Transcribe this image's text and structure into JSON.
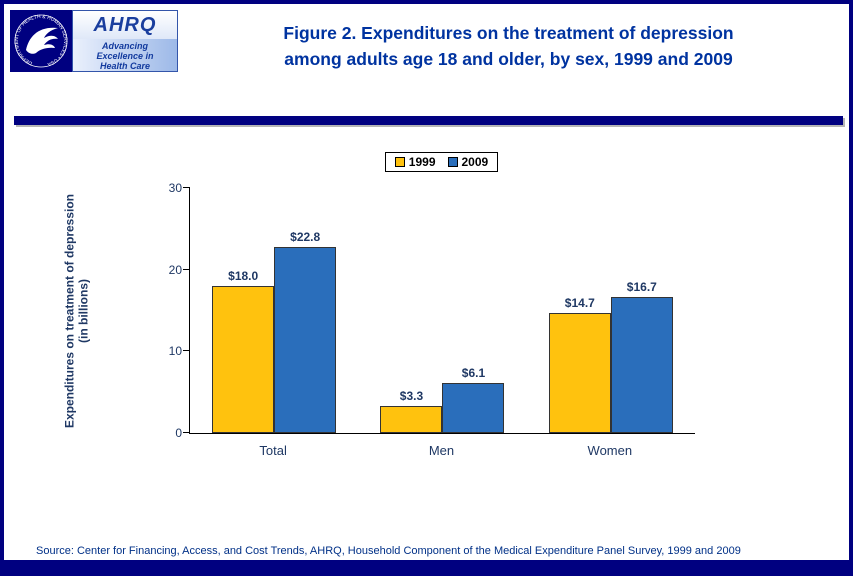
{
  "page": {
    "title_line1": "Figure 2. Expenditures on the treatment of depression",
    "title_line2": "among adults age 18 and older, by sex, 1999 and 2009",
    "source": "Source: Center for Financing, Access, and Cost Trends, AHRQ, Household Component of the Medical Expenditure Panel Survey, 1999 and 2009"
  },
  "logos": {
    "hhs_circle_text": "DEPARTMENT OF HEALTH & HUMAN SERVICES • USA",
    "ahrq_name": "AHRQ",
    "ahrq_tagline_line1": "Advancing",
    "ahrq_tagline_line2": "Excellence in",
    "ahrq_tagline_line3": "Health Care"
  },
  "colors": {
    "border_navy": "#000080",
    "title_blue": "#0033A0",
    "bar_1999": "#FFC20E",
    "bar_2009": "#2A6EBB"
  },
  "chart_data": {
    "type": "bar",
    "title": "",
    "categories": [
      "Total",
      "Men",
      "Women"
    ],
    "series": [
      {
        "name": "1999",
        "color": "#FFC20E",
        "values": [
          18.0,
          3.3,
          14.7
        ],
        "labels": [
          "$18.0",
          "$3.3",
          "$14.7"
        ]
      },
      {
        "name": "2009",
        "color": "#2A6EBB",
        "values": [
          22.8,
          6.1,
          16.7
        ],
        "labels": [
          "$22.8",
          "$6.1",
          "$16.7"
        ]
      }
    ],
    "xlabel": "",
    "ylabel": "Expenditures on treatment of depression (in billions)",
    "ylim": [
      0,
      30
    ],
    "yticks": [
      0,
      10,
      20,
      30
    ],
    "grid": false,
    "legend_position": "top-center"
  }
}
